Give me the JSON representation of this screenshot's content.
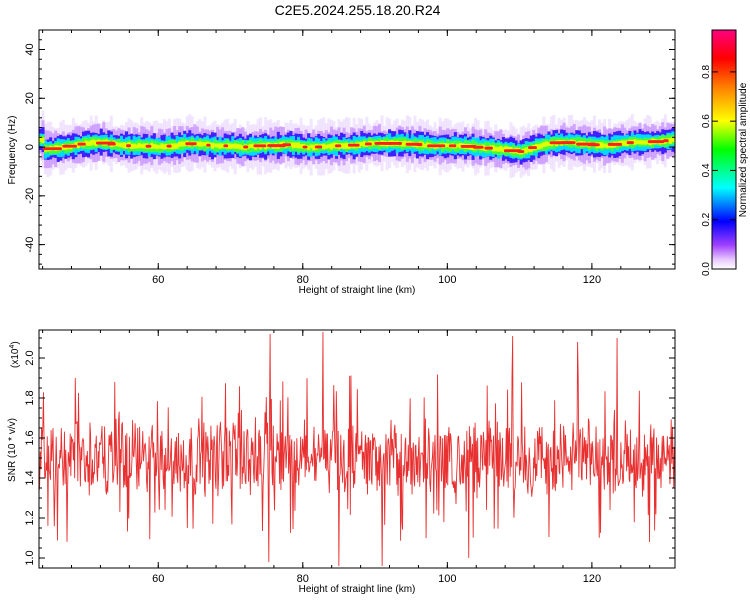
{
  "title": "C2E5.2024.255.18.20.R24",
  "chart_data": [
    {
      "type": "heatmap",
      "xlabel": "Height of straight line (km)",
      "ylabel": "Frequency (Hz)",
      "xlim": [
        43.5,
        131.5
      ],
      "ylim": [
        -50,
        48
      ],
      "xticks": [
        "60",
        "80",
        "100",
        "120"
      ],
      "xtick_values": [
        60,
        80,
        100,
        120
      ],
      "yticks": [
        "40",
        "20",
        "0",
        "-20",
        "-40"
      ],
      "ytick_values": [
        40,
        20,
        0,
        -20,
        -40
      ],
      "colorbar": {
        "label": "Normalized spectral amplitude",
        "range": [
          0,
          0.97
        ],
        "ticks": [
          "0.0",
          "0.2",
          "0.4",
          "0.6",
          "0.8"
        ],
        "tick_values": [
          0.0,
          0.2,
          0.4,
          0.6,
          0.8
        ]
      },
      "ridge_center_hz": {
        "x": [
          44,
          46,
          48,
          50,
          52,
          54,
          56,
          58,
          60,
          62,
          64,
          66,
          68,
          70,
          72,
          74,
          76,
          78,
          80,
          82,
          84,
          86,
          88,
          90,
          92,
          94,
          96,
          98,
          100,
          102,
          104,
          106,
          108,
          110,
          112,
          114,
          116,
          118,
          120,
          122,
          124,
          126,
          128,
          130,
          131
        ],
        "y": [
          -1,
          -0.5,
          0.5,
          1.5,
          2,
          1,
          0.5,
          0.5,
          0,
          0.5,
          1.5,
          1,
          0.5,
          0.5,
          0,
          0.5,
          0.5,
          1,
          0,
          0,
          0.5,
          0.5,
          1,
          1.5,
          1.5,
          1.5,
          1,
          0.5,
          0.5,
          0.5,
          0,
          -0.5,
          -1,
          -2,
          0,
          1.5,
          2,
          1.5,
          1,
          0.5,
          1.5,
          2,
          2,
          2.5,
          3
        ]
      }
    },
    {
      "type": "line",
      "xlabel": "Height of straight line (km)",
      "ylabel": "SNR (10 * v/v)",
      "scale_note": "(x10",
      "scale_exp": "4",
      "xlim": [
        43.5,
        131.5
      ],
      "ylim": [
        0.95,
        2.14
      ],
      "xticks": [
        "60",
        "80",
        "100",
        "120"
      ],
      "xtick_values": [
        60,
        80,
        100,
        120
      ],
      "yticks": [
        "1.0",
        "1.2",
        "1.4",
        "1.6",
        "1.8",
        "2.0"
      ],
      "ytick_values": [
        1.0,
        1.2,
        1.4,
        1.6,
        1.8,
        2.0
      ],
      "series": [
        {
          "color": "#e83030",
          "x_start": 43.5,
          "x_end": 131.5,
          "n_points": 1000,
          "mean": 1.5,
          "spread": 0.32,
          "peaks": [
            [
              75.5,
              2.12
            ],
            [
              82.8,
              2.13
            ],
            [
              109,
              2.11
            ],
            [
              123.5,
              2.1
            ],
            [
              48.5,
              1.9
            ],
            [
              54,
              1.88
            ],
            [
              118,
              2.08
            ]
          ],
          "troughs": [
            [
              75.3,
              0.98
            ],
            [
              85,
              0.96
            ],
            [
              91,
              0.96
            ],
            [
              103,
              1.0
            ],
            [
              64,
              1.15
            ],
            [
              128,
              1.08
            ]
          ]
        }
      ]
    }
  ]
}
